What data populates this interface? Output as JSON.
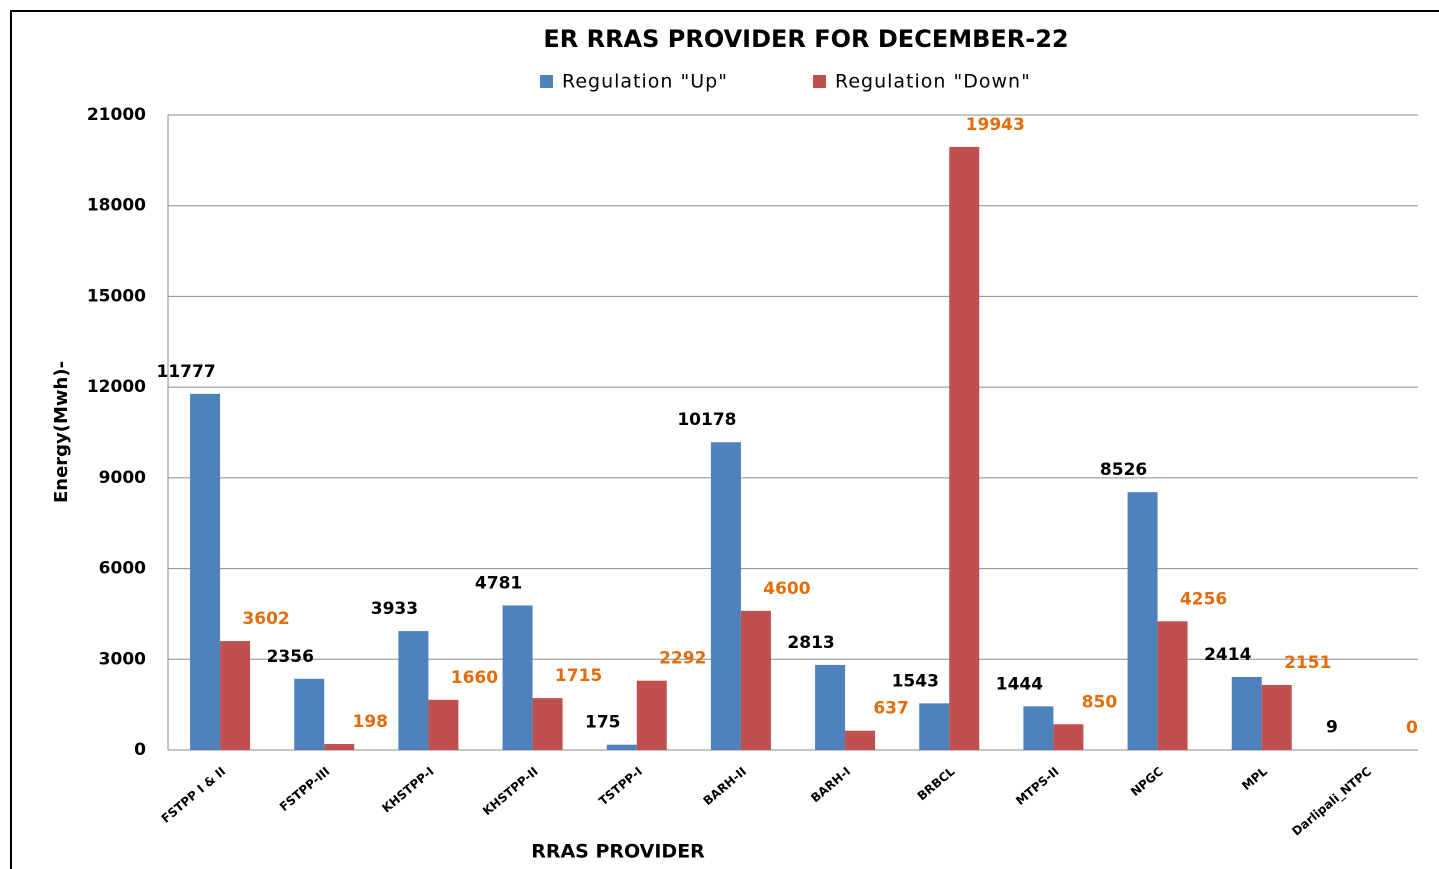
{
  "chart_data": {
    "type": "bar",
    "title": "ER RRAS PROVIDER FOR DECEMBER-22",
    "x_label": "RRAS PROVIDER",
    "y_label": "Energy(Mwh)-",
    "categories": [
      "FSTPP I & II",
      "FSTPP-III",
      "KHSTPP-I",
      "KHSTPP-II",
      "TSTPP-I",
      "BARH-II",
      "BARH-I",
      "BRBCL",
      "MTPS-II",
      "NPGC",
      "MPL",
      "Darlipali_NTPC"
    ],
    "series": [
      {
        "name": "Regulation \"Up\"",
        "color": "#4f81bd",
        "label_color": "#000000",
        "values": [
          11777,
          2356,
          3933,
          4781,
          175,
          10178,
          2813,
          1543,
          1444,
          8526,
          2414,
          9
        ]
      },
      {
        "name": "Regulation \"Down\"",
        "color": "#c0504d",
        "label_color": "#e46c0a",
        "values": [
          3602,
          198,
          1660,
          1715,
          2292,
          4600,
          637,
          19943,
          850,
          4256,
          2151,
          0
        ]
      }
    ],
    "ylim": [
      0,
      21000
    ],
    "yticks": [
      0,
      3000,
      6000,
      9000,
      12000,
      15000,
      18000,
      21000
    ],
    "grid": true,
    "legend": "top"
  }
}
